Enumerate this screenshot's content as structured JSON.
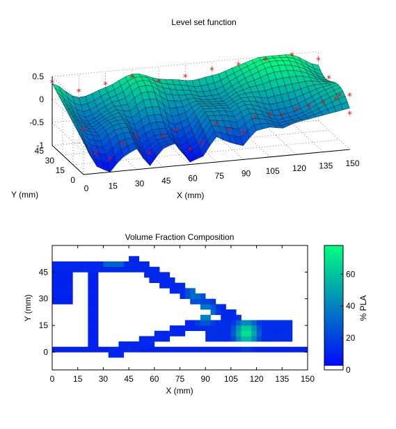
{
  "chart_data": [
    {
      "type": "surface",
      "title": "Level set function",
      "xlabel": "X (mm)",
      "ylabel": "Y (mm)",
      "zlabel": "",
      "xlim": [
        0,
        150
      ],
      "ylim": [
        0,
        45
      ],
      "zlim": [
        -1,
        0.5
      ],
      "xticks": [
        "0",
        "15",
        "30",
        "45",
        "60",
        "75",
        "90",
        "105",
        "120",
        "135",
        "150"
      ],
      "yticks": [
        "0",
        "15",
        "30",
        "45"
      ],
      "zticks": [
        "0.5",
        "0",
        "-0.5",
        "-1"
      ],
      "colormap": "winter",
      "grid": true,
      "marker_color": "#ff0000",
      "marker_symbol": "*",
      "knots": {
        "front_row_y0": [
          {
            "x": 0,
            "z": -0.3
          },
          {
            "x": 7,
            "z": -0.85
          },
          {
            "x": 15,
            "z": -1.0
          },
          {
            "x": 22,
            "z": -0.7
          },
          {
            "x": 30,
            "z": -0.55
          },
          {
            "x": 37,
            "z": -0.95
          },
          {
            "x": 45,
            "z": -0.6
          },
          {
            "x": 52,
            "z": -0.5
          },
          {
            "x": 60,
            "z": -0.95
          },
          {
            "x": 67,
            "z": -0.85
          },
          {
            "x": 75,
            "z": -0.45
          },
          {
            "x": 82,
            "z": -0.6
          },
          {
            "x": 90,
            "z": -0.7
          },
          {
            "x": 97,
            "z": -0.4
          },
          {
            "x": 105,
            "z": -0.35
          },
          {
            "x": 112,
            "z": -0.4
          },
          {
            "x": 120,
            "z": -0.3
          },
          {
            "x": 127,
            "z": -0.25
          },
          {
            "x": 135,
            "z": -0.2
          },
          {
            "x": 142,
            "z": -0.15
          },
          {
            "x": 150,
            "z": -0.1
          }
        ],
        "back_row_y45": [
          {
            "x": 0,
            "z": 0.35
          },
          {
            "x": 15,
            "z": 0.1
          },
          {
            "x": 30,
            "z": 0.2
          },
          {
            "x": 45,
            "z": 0.3
          },
          {
            "x": 60,
            "z": 0.15
          },
          {
            "x": 75,
            "z": 0.2
          },
          {
            "x": 90,
            "z": 0.3
          },
          {
            "x": 105,
            "z": 0.35
          },
          {
            "x": 120,
            "z": 0.4
          },
          {
            "x": 135,
            "z": 0.45
          },
          {
            "x": 150,
            "z": 0.3
          }
        ]
      }
    },
    {
      "type": "heatmap",
      "title": "Volume Fraction Composition",
      "xlabel": "X (mm)",
      "ylabel": "Y (mm)",
      "xlim": [
        0,
        150
      ],
      "ylim": [
        -10,
        60
      ],
      "xticks": [
        "0",
        "15",
        "30",
        "45",
        "60",
        "75",
        "90",
        "105",
        "120",
        "135",
        "150"
      ],
      "yticks": [
        "0",
        "15",
        "30",
        "45"
      ],
      "colormap": "winter",
      "colorbar": {
        "label": "% PLA",
        "ticks": [
          "0",
          "20",
          "40",
          "60"
        ],
        "range": [
          0,
          78
        ]
      },
      "empty_color": "#ffffff",
      "cell_size_mm": 3,
      "structure": {
        "top_chord": {
          "x_from": 0,
          "x_to": 48,
          "y_from": 46,
          "y_to": 52,
          "value": 12
        },
        "top_chord_hot": {
          "x_from": 30,
          "x_to": 42,
          "y_from": 49,
          "y_to": 52,
          "value": 30
        },
        "upper_diagonal": {
          "from": [
            48,
            50
          ],
          "to": [
            108,
            18
          ],
          "thickness_mm": 7,
          "value": 12
        },
        "lower_diagonal": {
          "from": [
            36,
            0
          ],
          "to": [
            90,
            17
          ],
          "thickness_mm": 6,
          "value": 12
        },
        "bottom_chord": {
          "x_from": 0,
          "x_to": 150,
          "y_from": -1,
          "y_to": 2,
          "value": 10
        },
        "right_arm": {
          "x_from": 90,
          "x_to": 140,
          "y_from": 6,
          "y_to": 17,
          "value": 14
        },
        "left_web": {
          "x_from": 0,
          "x_to": 12,
          "y_from": 28,
          "y_to": 46,
          "value": 10
        },
        "vertical_web": {
          "x_from": 22,
          "x_to": 28,
          "y_from": 0,
          "y_to": 48,
          "value": 10
        },
        "hotspots": [
          {
            "x": 114,
            "y": 11,
            "value": 72
          },
          {
            "x": 90,
            "y": 22,
            "value": 45
          },
          {
            "x": 84,
            "y": 33,
            "value": 35
          }
        ]
      }
    }
  ]
}
